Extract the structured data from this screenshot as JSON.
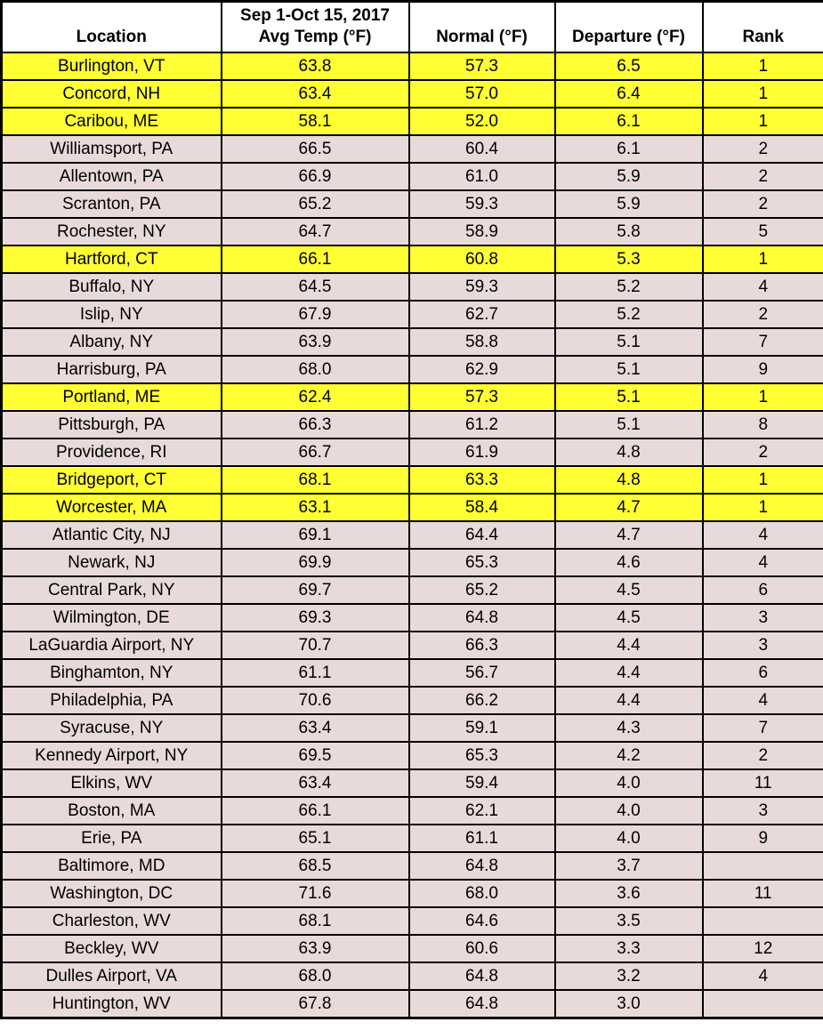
{
  "table": {
    "header": {
      "location": "Location",
      "avg_temp_line1": "Sep 1-Oct 15, 2017",
      "avg_temp_line2": "Avg Temp (°F)",
      "normal": "Normal (°F)",
      "departure": "Departure (°F)",
      "rank": "Rank"
    },
    "colors": {
      "highlight": "#FFFF33",
      "row_bg": "#E9DADA",
      "border": "#000000",
      "header_bg": "#FFFFFF"
    }
  },
  "chart_data": {
    "type": "table",
    "columns": [
      "Location",
      "Sep 1-Oct 15, 2017 Avg Temp (°F)",
      "Normal (°F)",
      "Departure (°F)",
      "Rank"
    ],
    "highlight_meaning": "rank 1 rows highlighted yellow",
    "rows": [
      {
        "location": "Burlington, VT",
        "avg_temp": "63.8",
        "normal": "57.3",
        "departure": "6.5",
        "rank": "1",
        "highlight": true
      },
      {
        "location": "Concord, NH",
        "avg_temp": "63.4",
        "normal": "57.0",
        "departure": "6.4",
        "rank": "1",
        "highlight": true
      },
      {
        "location": "Caribou, ME",
        "avg_temp": "58.1",
        "normal": "52.0",
        "departure": "6.1",
        "rank": "1",
        "highlight": true
      },
      {
        "location": "Williamsport, PA",
        "avg_temp": "66.5",
        "normal": "60.4",
        "departure": "6.1",
        "rank": "2",
        "highlight": false
      },
      {
        "location": "Allentown, PA",
        "avg_temp": "66.9",
        "normal": "61.0",
        "departure": "5.9",
        "rank": "2",
        "highlight": false
      },
      {
        "location": "Scranton, PA",
        "avg_temp": "65.2",
        "normal": "59.3",
        "departure": "5.9",
        "rank": "2",
        "highlight": false
      },
      {
        "location": "Rochester, NY",
        "avg_temp": "64.7",
        "normal": "58.9",
        "departure": "5.8",
        "rank": "5",
        "highlight": false
      },
      {
        "location": "Hartford, CT",
        "avg_temp": "66.1",
        "normal": "60.8",
        "departure": "5.3",
        "rank": "1",
        "highlight": true
      },
      {
        "location": "Buffalo, NY",
        "avg_temp": "64.5",
        "normal": "59.3",
        "departure": "5.2",
        "rank": "4",
        "highlight": false
      },
      {
        "location": "Islip, NY",
        "avg_temp": "67.9",
        "normal": "62.7",
        "departure": "5.2",
        "rank": "2",
        "highlight": false
      },
      {
        "location": "Albany, NY",
        "avg_temp": "63.9",
        "normal": "58.8",
        "departure": "5.1",
        "rank": "7",
        "highlight": false
      },
      {
        "location": "Harrisburg, PA",
        "avg_temp": "68.0",
        "normal": "62.9",
        "departure": "5.1",
        "rank": "9",
        "highlight": false
      },
      {
        "location": "Portland, ME",
        "avg_temp": "62.4",
        "normal": "57.3",
        "departure": "5.1",
        "rank": "1",
        "highlight": true
      },
      {
        "location": "Pittsburgh, PA",
        "avg_temp": "66.3",
        "normal": "61.2",
        "departure": "5.1",
        "rank": "8",
        "highlight": false
      },
      {
        "location": "Providence, RI",
        "avg_temp": "66.7",
        "normal": "61.9",
        "departure": "4.8",
        "rank": "2",
        "highlight": false
      },
      {
        "location": "Bridgeport, CT",
        "avg_temp": "68.1",
        "normal": "63.3",
        "departure": "4.8",
        "rank": "1",
        "highlight": true
      },
      {
        "location": "Worcester, MA",
        "avg_temp": "63.1",
        "normal": "58.4",
        "departure": "4.7",
        "rank": "1",
        "highlight": true
      },
      {
        "location": "Atlantic City, NJ",
        "avg_temp": "69.1",
        "normal": "64.4",
        "departure": "4.7",
        "rank": "4",
        "highlight": false
      },
      {
        "location": "Newark, NJ",
        "avg_temp": "69.9",
        "normal": "65.3",
        "departure": "4.6",
        "rank": "4",
        "highlight": false
      },
      {
        "location": "Central Park, NY",
        "avg_temp": "69.7",
        "normal": "65.2",
        "departure": "4.5",
        "rank": "6",
        "highlight": false
      },
      {
        "location": "Wilmington, DE",
        "avg_temp": "69.3",
        "normal": "64.8",
        "departure": "4.5",
        "rank": "3",
        "highlight": false
      },
      {
        "location": "LaGuardia Airport, NY",
        "avg_temp": "70.7",
        "normal": "66.3",
        "departure": "4.4",
        "rank": "3",
        "highlight": false
      },
      {
        "location": "Binghamton, NY",
        "avg_temp": "61.1",
        "normal": "56.7",
        "departure": "4.4",
        "rank": "6",
        "highlight": false
      },
      {
        "location": "Philadelphia, PA",
        "avg_temp": "70.6",
        "normal": "66.2",
        "departure": "4.4",
        "rank": "4",
        "highlight": false
      },
      {
        "location": "Syracuse, NY",
        "avg_temp": "63.4",
        "normal": "59.1",
        "departure": "4.3",
        "rank": "7",
        "highlight": false
      },
      {
        "location": "Kennedy Airport, NY",
        "avg_temp": "69.5",
        "normal": "65.3",
        "departure": "4.2",
        "rank": "2",
        "highlight": false
      },
      {
        "location": "Elkins, WV",
        "avg_temp": "63.4",
        "normal": "59.4",
        "departure": "4.0",
        "rank": "11",
        "highlight": false
      },
      {
        "location": "Boston, MA",
        "avg_temp": "66.1",
        "normal": "62.1",
        "departure": "4.0",
        "rank": "3",
        "highlight": false
      },
      {
        "location": "Erie, PA",
        "avg_temp": "65.1",
        "normal": "61.1",
        "departure": "4.0",
        "rank": "9",
        "highlight": false
      },
      {
        "location": "Baltimore, MD",
        "avg_temp": "68.5",
        "normal": "64.8",
        "departure": "3.7",
        "rank": "",
        "highlight": false
      },
      {
        "location": "Washington, DC",
        "avg_temp": "71.6",
        "normal": "68.0",
        "departure": "3.6",
        "rank": "11",
        "highlight": false
      },
      {
        "location": "Charleston, WV",
        "avg_temp": "68.1",
        "normal": "64.6",
        "departure": "3.5",
        "rank": "",
        "highlight": false
      },
      {
        "location": "Beckley, WV",
        "avg_temp": "63.9",
        "normal": "60.6",
        "departure": "3.3",
        "rank": "12",
        "highlight": false
      },
      {
        "location": "Dulles Airport, VA",
        "avg_temp": "68.0",
        "normal": "64.8",
        "departure": "3.2",
        "rank": "4",
        "highlight": false
      },
      {
        "location": "Huntington, WV",
        "avg_temp": "67.8",
        "normal": "64.8",
        "departure": "3.0",
        "rank": "",
        "highlight": false
      }
    ]
  }
}
